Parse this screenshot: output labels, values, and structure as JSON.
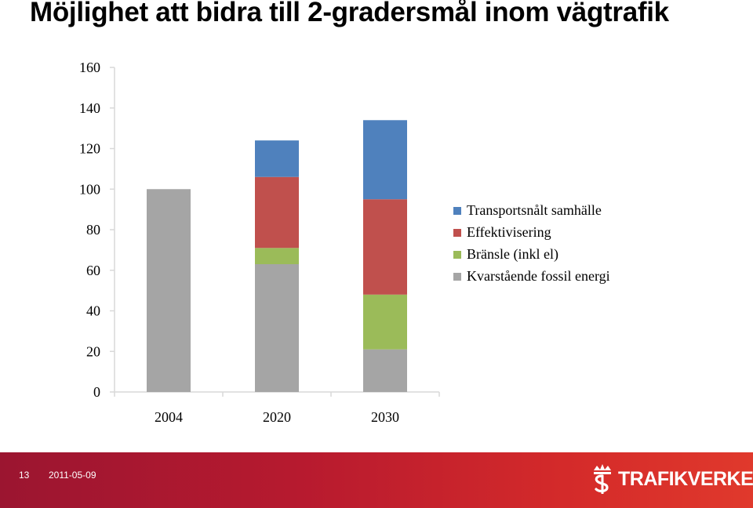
{
  "title": "Möjlighet att bidra till 2-gradersmål inom vägtrafik",
  "chart_data": {
    "type": "bar",
    "stacked": true,
    "categories": [
      "2004",
      "2020",
      "2030"
    ],
    "series": [
      {
        "name": "Kvarstående fossil energi",
        "color": "#a5a5a5",
        "values": [
          100,
          63,
          21
        ]
      },
      {
        "name": "Bränsle (inkl el)",
        "color": "#9bbb59",
        "values": [
          0,
          8,
          27
        ]
      },
      {
        "name": "Effektivisering",
        "color": "#c0504d",
        "values": [
          0,
          35,
          47
        ]
      },
      {
        "name": "Transportsnålt samhälle",
        "color": "#4f81bd",
        "values": [
          0,
          18,
          39
        ]
      }
    ],
    "legend_order": [
      "Transportsnålt samhälle",
      "Effektivisering",
      "Bränsle (inkl el)",
      "Kvarstående fossil energi"
    ],
    "yticks": [
      "0",
      "20",
      "40",
      "60",
      "80",
      "100",
      "120",
      "140",
      "160"
    ],
    "ylim": [
      0,
      160
    ],
    "legend_position": "right",
    "grid": false
  },
  "footer": {
    "slide_number": "13",
    "date": "2011-05-09",
    "logo_text": "TRAFIKVERKET"
  }
}
